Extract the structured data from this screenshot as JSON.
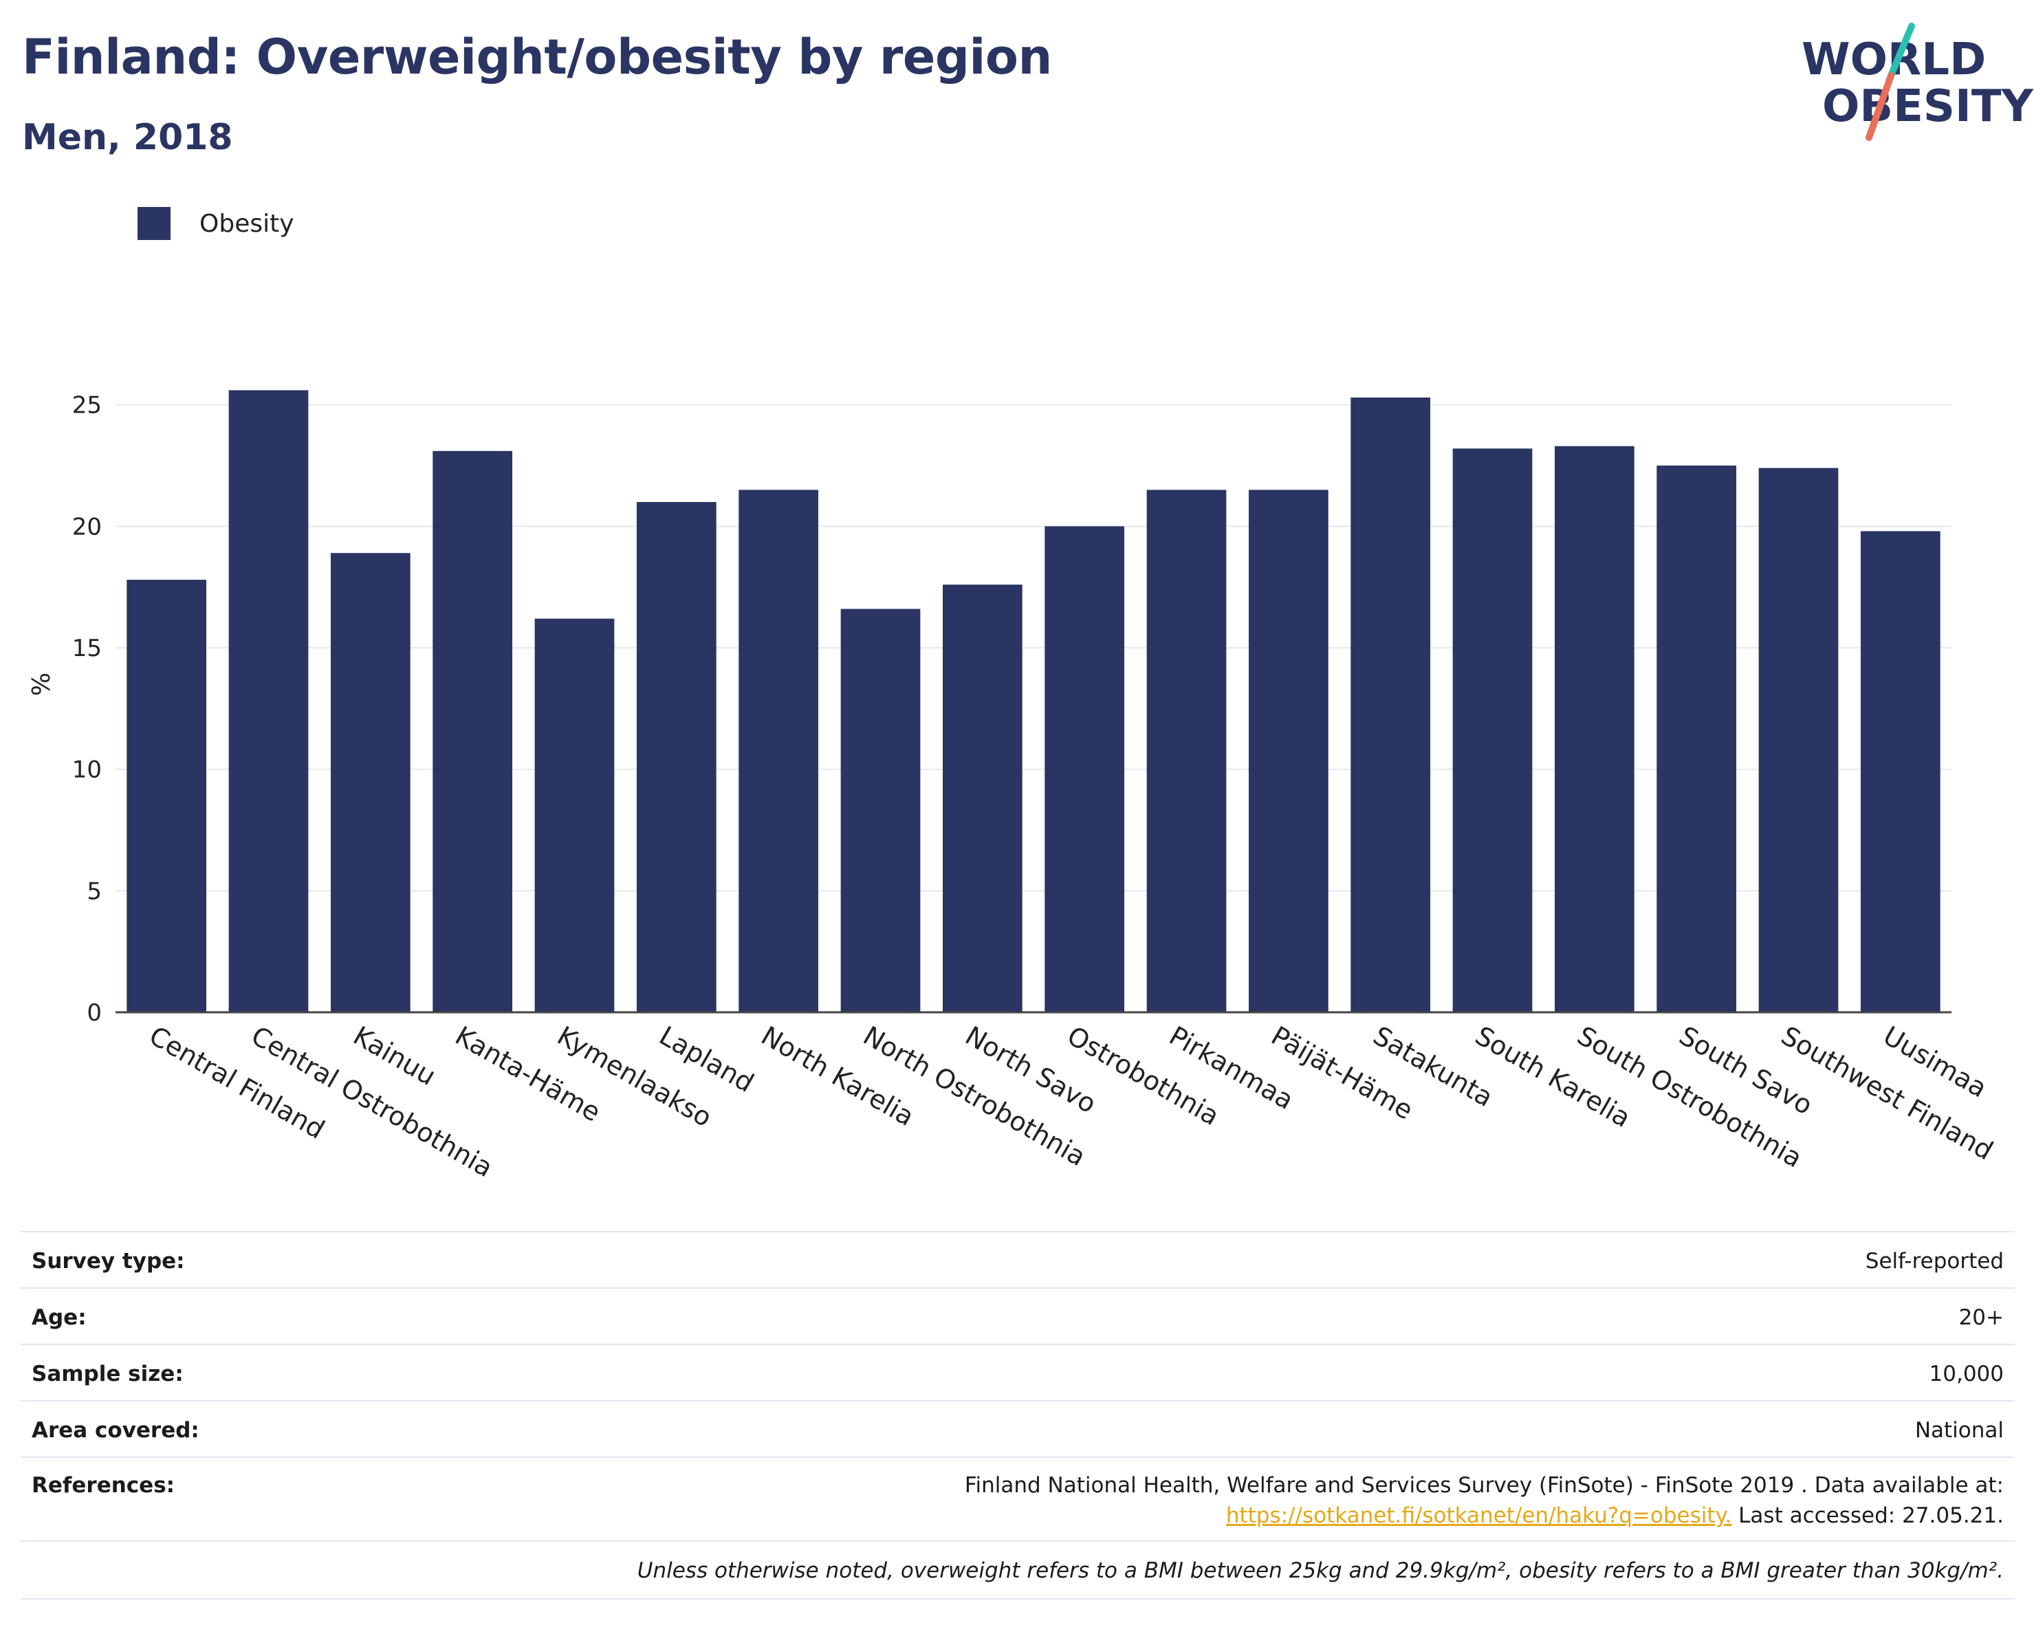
{
  "header": {
    "title": "Finland: Overweight/obesity by region",
    "subtitle": "Men, 2018",
    "logo_line1": "WORLD",
    "logo_line2": "OBESITY"
  },
  "legend": {
    "items": [
      {
        "label": "Obesity",
        "color": "#2a3563"
      }
    ]
  },
  "chart_data": {
    "type": "bar",
    "ylabel": "%",
    "xlabel": "",
    "ylim": [
      0,
      27
    ],
    "yticks": [
      0,
      5,
      10,
      15,
      20,
      25
    ],
    "grid": true,
    "legend_placement": "top-left",
    "categories": [
      "Central Finland",
      "Central Ostrobothnia",
      "Kainuu",
      "Kanta-Häme",
      "Kymenlaakso",
      "Lapland",
      "North Karelia",
      "North Ostrobothnia",
      "North Savo",
      "Ostrobothnia",
      "Pirkanmaa",
      "Päijät-Häme",
      "Satakunta",
      "South Karelia",
      "South Ostrobothnia",
      "South Savo",
      "Southwest Finland",
      "Uusimaa"
    ],
    "series": [
      {
        "name": "Obesity",
        "color": "#2a3563",
        "values": [
          17.8,
          25.6,
          18.9,
          23.1,
          16.2,
          21.0,
          21.5,
          16.6,
          17.6,
          20.0,
          21.5,
          21.5,
          25.3,
          23.2,
          23.3,
          22.5,
          22.4,
          19.8
        ]
      }
    ]
  },
  "info": {
    "survey_type_label": "Survey type:",
    "survey_type_value": "Self-reported",
    "age_label": "Age:",
    "age_value": "20+",
    "sample_size_label": "Sample size:",
    "sample_size_value": "10,000",
    "area_label": "Area covered:",
    "area_value": "National",
    "references_label": "References:",
    "references_line1": "Finland National Health, Welfare and Services Survey (FinSote) - FinSote 2019 . Data available at:",
    "references_link": "https://sotkanet.fi/sotkanet/en/haku?q=obesity.",
    "references_accessed": " Last accessed: 27.05.21.",
    "note": "Unless otherwise noted, overweight refers to a BMI between 25kg and 29.9kg/m², obesity refers to a BMI greater than 30kg/m²."
  }
}
